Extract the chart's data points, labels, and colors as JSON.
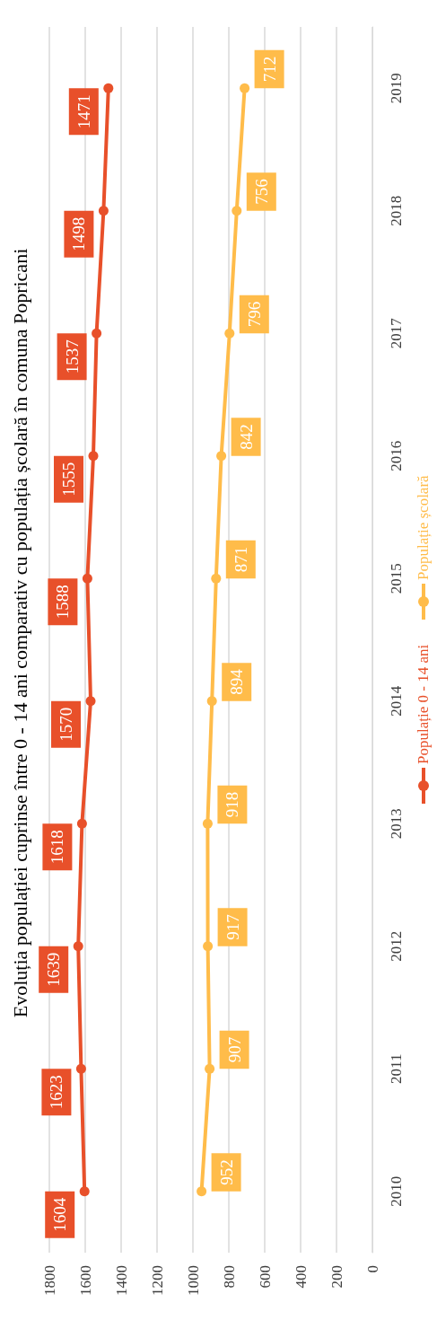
{
  "chart_data": {
    "type": "line",
    "title": "Evoluția populației cuprinse între 0 - 14 ani comparativ cu populația școlară în comuna Popricani",
    "orientation": "horizontal",
    "categories": [
      "2019",
      "2018",
      "2017",
      "2016",
      "2015",
      "2014",
      "2013",
      "2012",
      "2011",
      "2010"
    ],
    "series": [
      {
        "name": "Populație 0 - 14 ani",
        "color": "#e8502a",
        "values": [
          1471,
          1498,
          1537,
          1555,
          1588,
          1570,
          1618,
          1639,
          1623,
          1604
        ]
      },
      {
        "name": "Populație școlară",
        "color": "#ffbc4a",
        "values": [
          712,
          756,
          796,
          842,
          871,
          894,
          918,
          917,
          907,
          952
        ]
      }
    ],
    "xlim": [
      1800,
      0
    ],
    "xticks": [
      0,
      200,
      400,
      600,
      800,
      1000,
      1200,
      1400,
      1600,
      1800
    ],
    "grid": "x",
    "legend": "right",
    "marker": "circle",
    "data_labels": true
  }
}
